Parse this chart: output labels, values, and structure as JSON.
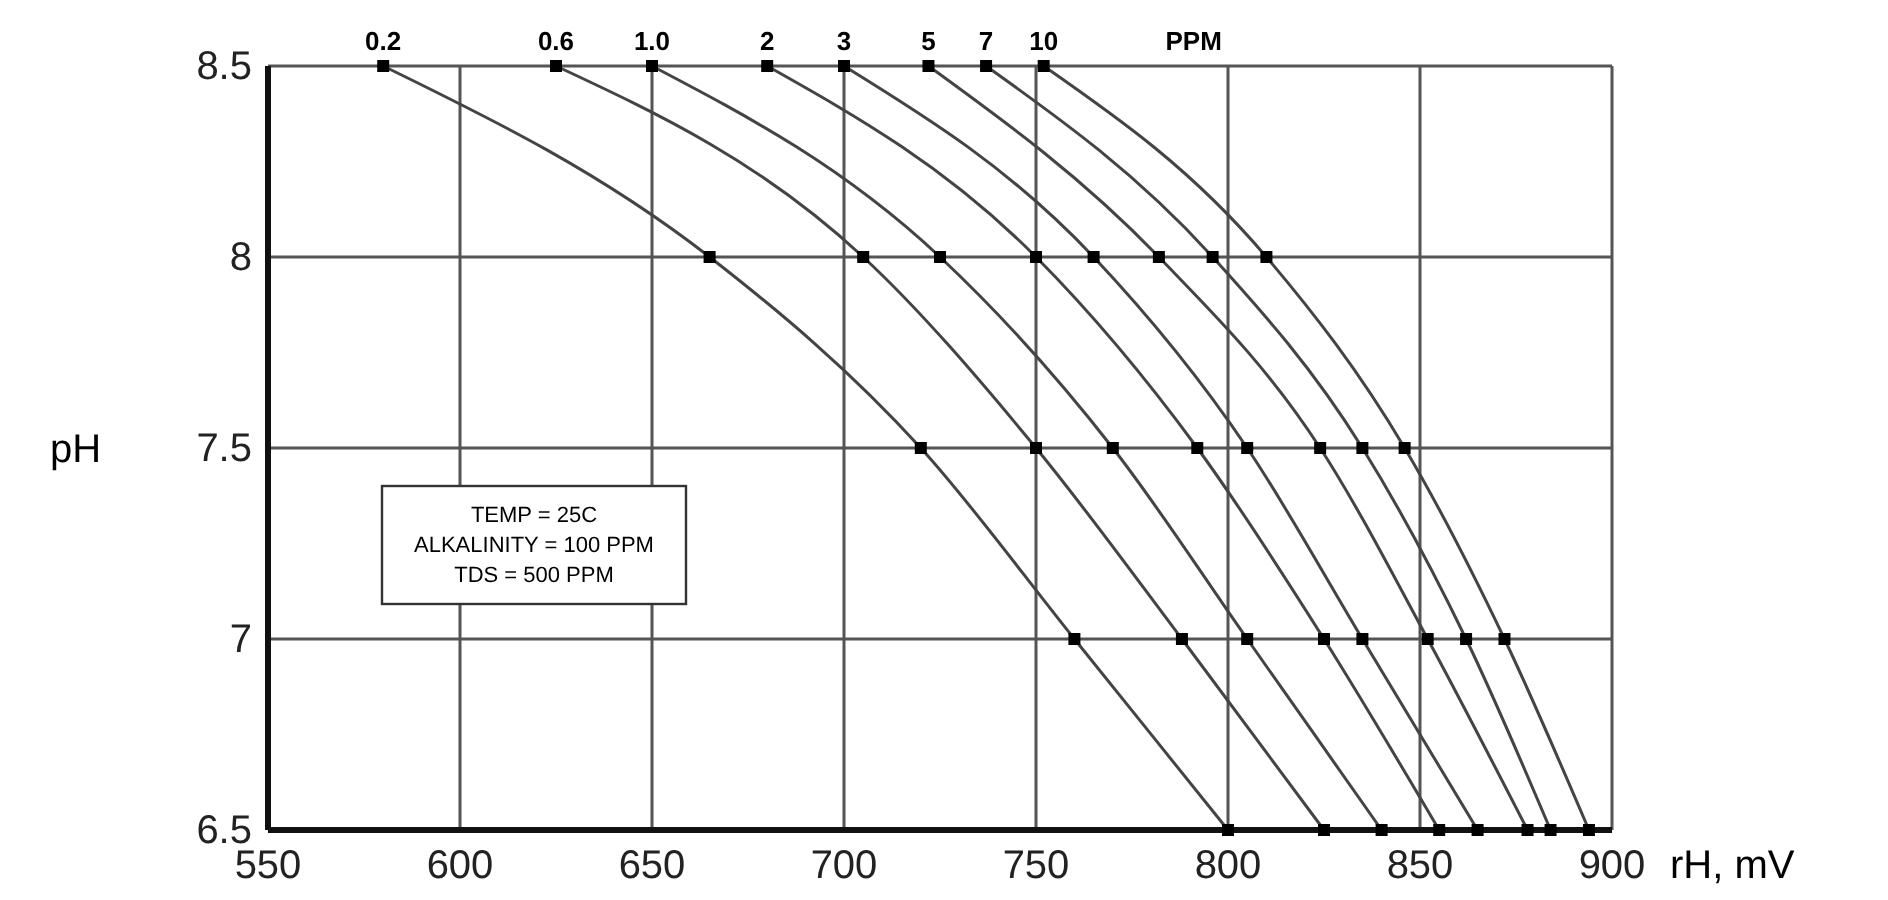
{
  "chart_data": {
    "type": "line",
    "xlabel": "rH, mV",
    "ylabel": "pH",
    "xlim": [
      550,
      900
    ],
    "ylim": [
      6.5,
      8.5
    ],
    "xticks": [
      550,
      600,
      650,
      700,
      750,
      800,
      850,
      900
    ],
    "yticks": [
      6.5,
      7,
      7.5,
      8,
      8.5
    ],
    "grid": true,
    "marker": "square",
    "line_style": "solid",
    "annotations": [
      "PPM",
      "TEMP = 25C",
      "ALKALINITY = 100 PPM",
      "TDS = 500 PPM"
    ],
    "series": [
      {
        "name": "0.2",
        "color": "#444444",
        "x": [
          580,
          665,
          720,
          760,
          800
        ],
        "values": [
          8.5,
          8,
          7.5,
          7,
          6.5
        ]
      },
      {
        "name": "0.6",
        "color": "#444444",
        "x": [
          625,
          705,
          750,
          788,
          825
        ],
        "values": [
          8.5,
          8,
          7.5,
          7,
          6.5
        ]
      },
      {
        "name": "1.0",
        "color": "#444444",
        "x": [
          650,
          725,
          770,
          805,
          840
        ],
        "values": [
          8.5,
          8,
          7.5,
          7,
          6.5
        ]
      },
      {
        "name": "2",
        "color": "#444444",
        "x": [
          680,
          750,
          792,
          825,
          855
        ],
        "values": [
          8.5,
          8,
          7.5,
          7,
          6.5
        ]
      },
      {
        "name": "3",
        "color": "#444444",
        "x": [
          700,
          765,
          805,
          835,
          865
        ],
        "values": [
          8.5,
          8,
          7.5,
          7,
          6.5
        ]
      },
      {
        "name": "5",
        "color": "#444444",
        "x": [
          722,
          782,
          824,
          852,
          878
        ],
        "values": [
          8.5,
          8,
          7.5,
          7,
          6.5
        ]
      },
      {
        "name": "7",
        "color": "#444444",
        "x": [
          737,
          796,
          835,
          862,
          884
        ],
        "values": [
          8.5,
          8,
          7.5,
          7,
          6.5
        ]
      },
      {
        "name": "10",
        "color": "#444444",
        "x": [
          752,
          810,
          846,
          872,
          894
        ],
        "values": [
          8.5,
          8,
          7.5,
          7,
          6.5
        ]
      }
    ]
  }
}
